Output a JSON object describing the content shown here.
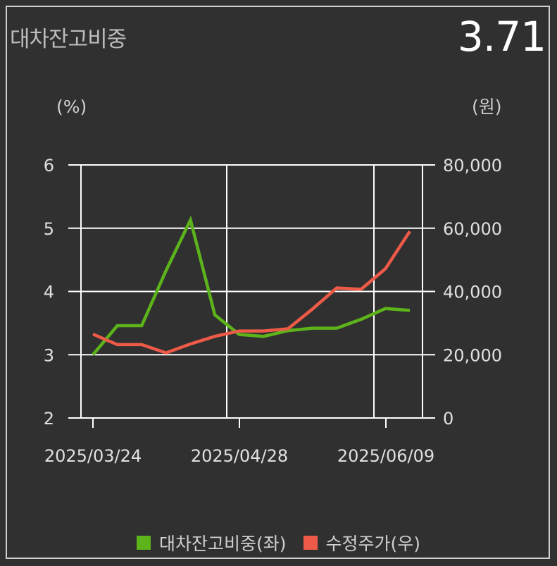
{
  "header": {
    "title": "대차잔고비중",
    "current_value": "3.71"
  },
  "units": {
    "left": "(%)",
    "right": "(원)"
  },
  "chart_data": {
    "type": "line",
    "x_ticks": [
      "2025/03/24",
      "2025/04/28",
      "2025/06/09"
    ],
    "y_left": {
      "min": 2,
      "max": 6,
      "ticks": [
        "6",
        "5",
        "4",
        "3",
        "2"
      ],
      "tick_values": [
        6,
        5,
        4,
        3,
        2
      ]
    },
    "y_right": {
      "min": 0,
      "max": 80000,
      "ticks": [
        "80,000",
        "60,000",
        "40,000",
        "20,000",
        "0"
      ],
      "tick_values": [
        80000,
        60000,
        40000,
        20000,
        0
      ]
    },
    "grid": true,
    "legend_position": "bottom",
    "series": [
      {
        "name": "대차잔고비중(좌)",
        "axis": "left",
        "color": "#5cb31a",
        "values": [
          3.0,
          3.46,
          3.46,
          4.33,
          5.13,
          3.63,
          3.32,
          3.29,
          3.38,
          3.42,
          3.42,
          3.56,
          3.73,
          3.7
        ]
      },
      {
        "name": "수정주가(우)",
        "axis": "right",
        "color": "#ee5a48",
        "values": [
          26500,
          23200,
          23200,
          20600,
          23400,
          25800,
          27500,
          27500,
          28200,
          34400,
          41100,
          40700,
          47200,
          59000
        ]
      }
    ]
  },
  "legend": {
    "items": [
      {
        "label": "대차잔고비중(좌)",
        "color": "#5cb31a"
      },
      {
        "label": "수정주가(우)",
        "color": "#ee5a48"
      }
    ]
  }
}
